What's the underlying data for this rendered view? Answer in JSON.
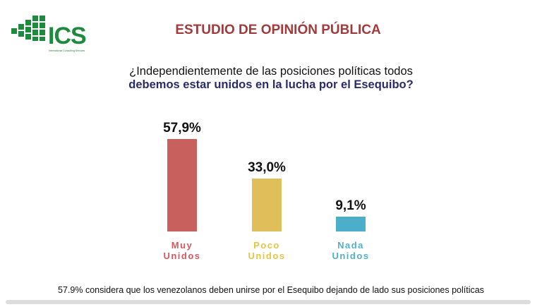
{
  "logo": {
    "name": "ICS",
    "tagline": "International Consulting Services"
  },
  "header": {
    "title": "ESTUDIO DE OPINIÓN PÚBLICA"
  },
  "chart_data": {
    "type": "bar",
    "title": "¿Independientemente de las posiciones políticas todos debemos estar unidos en la lucha por el Esequibo?",
    "title_line1": "¿Independientemente de las posiciones políticas todos",
    "title_line2": "debemos estar unidos en la lucha por el Esequibo?",
    "categories": [
      "Muy\nUnidos",
      "Poco\nUnidos",
      "Nada\nUnidos"
    ],
    "values": [
      57.9,
      33.0,
      9.1
    ],
    "labels": [
      "57,9%",
      "33,0%",
      "9,1%"
    ],
    "colors": [
      "#c8605e",
      "#e0bf5a",
      "#4bafc9"
    ],
    "label_colors": [
      "#d8585c",
      "#e6c440",
      "#4fb0c8"
    ],
    "ylim": [
      0,
      60
    ]
  },
  "footer": {
    "note": "57.9% considera que los venezolanos deben unirse por el Esequibo dejando de lado sus posiciones políticas"
  }
}
